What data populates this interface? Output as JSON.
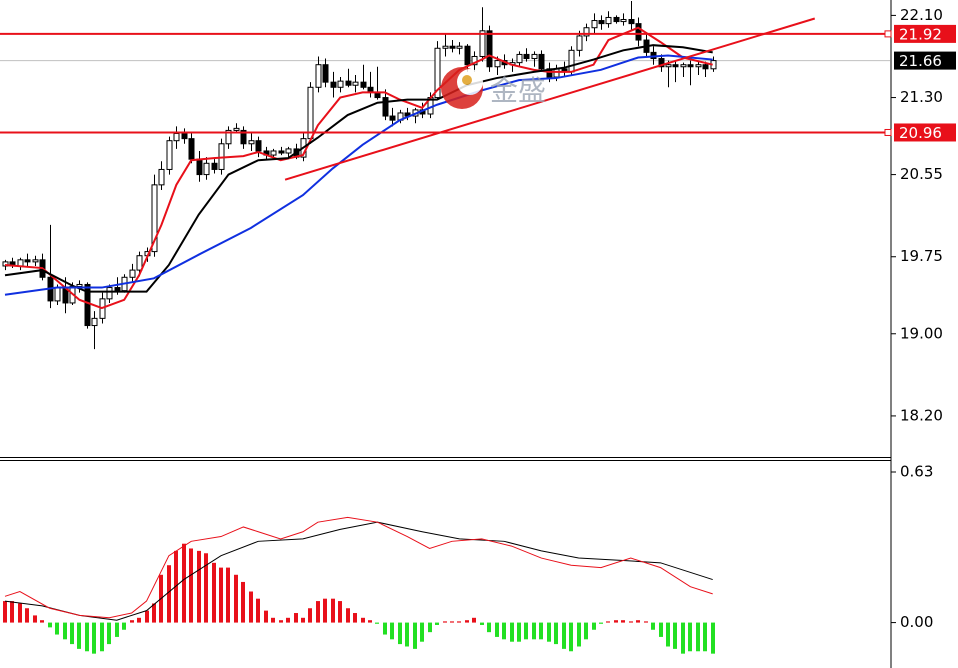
{
  "chart_data": [
    {
      "type": "candlestick",
      "watermark": "金盛",
      "xlim": [
        -0.67,
        118.8
      ],
      "ylim": [
        17.8,
        22.25
      ],
      "yticks": [
        {
          "value": 22.1,
          "label": "22.10"
        },
        {
          "value": 21.3,
          "label": "21.30"
        },
        20.55,
        19.75,
        {
          "value": 19.0,
          "label": "19.00"
        },
        {
          "value": 18.2,
          "label": "18.20"
        }
      ],
      "up_color": "#ffffff",
      "down_color": "#000000",
      "open": [
        19.66,
        19.7,
        19.66,
        19.72,
        19.7,
        19.72,
        19.55,
        19.32,
        19.45,
        19.3,
        19.46,
        19.48,
        19.08,
        19.15,
        19.34,
        19.45,
        19.42,
        19.55,
        19.62,
        19.76,
        19.8,
        20.45,
        20.6,
        20.88,
        20.95,
        20.9,
        20.7,
        20.55,
        20.66,
        20.6,
        20.85,
        20.98,
        20.98,
        20.85,
        20.88,
        20.78,
        20.74,
        20.78,
        20.76,
        20.8,
        20.72,
        20.9,
        21.4,
        21.62,
        21.45,
        21.4,
        21.46,
        21.42,
        21.45,
        21.4,
        21.35,
        21.3,
        21.12,
        21.08,
        21.15,
        21.12,
        21.18,
        21.14,
        21.3,
        21.78,
        21.8,
        21.78,
        21.8,
        21.62,
        21.7,
        21.95,
        21.6,
        21.66,
        21.62,
        21.64,
        21.72,
        21.68,
        21.72,
        21.58,
        21.5,
        21.58,
        21.55,
        21.76,
        21.9,
        21.98,
        22.05,
        22.02,
        22.08,
        22.04,
        22.06,
        22.02,
        21.86,
        21.74,
        21.68,
        21.6,
        21.62,
        21.6,
        21.62,
        21.6,
        21.62,
        21.58
      ],
      "high": [
        19.72,
        19.74,
        19.74,
        19.78,
        19.76,
        19.78,
        20.06,
        19.48,
        19.55,
        19.5,
        19.52,
        19.5,
        19.22,
        19.4,
        19.48,
        19.55,
        19.58,
        19.68,
        19.8,
        19.84,
        20.55,
        20.68,
        20.92,
        21.02,
        21.0,
        20.95,
        20.78,
        20.72,
        20.7,
        20.9,
        21.02,
        21.05,
        21.02,
        20.95,
        20.92,
        20.82,
        20.8,
        20.82,
        20.82,
        20.85,
        20.95,
        21.45,
        21.7,
        21.68,
        21.55,
        21.5,
        21.58,
        21.52,
        21.62,
        21.55,
        21.6,
        21.38,
        21.2,
        21.18,
        21.2,
        21.2,
        21.25,
        21.35,
        21.85,
        21.92,
        21.86,
        21.84,
        21.82,
        21.75,
        22.18,
        22.0,
        21.7,
        21.72,
        21.68,
        21.75,
        21.78,
        21.75,
        21.76,
        21.64,
        21.62,
        21.65,
        21.8,
        21.95,
        22.02,
        22.12,
        22.1,
        22.14,
        22.1,
        22.12,
        22.24,
        22.08,
        21.92,
        21.8,
        21.72,
        21.66,
        21.66,
        21.64,
        21.66,
        21.65,
        21.65,
        21.7
      ],
      "low": [
        19.62,
        19.64,
        19.62,
        19.66,
        19.66,
        19.52,
        19.25,
        19.28,
        19.2,
        19.28,
        19.4,
        19.05,
        18.85,
        19.1,
        19.3,
        19.38,
        19.4,
        19.5,
        19.56,
        19.7,
        19.75,
        20.4,
        20.55,
        20.8,
        20.85,
        20.66,
        20.48,
        20.5,
        20.56,
        20.55,
        20.8,
        20.95,
        20.8,
        20.78,
        20.72,
        20.7,
        20.72,
        20.74,
        20.7,
        20.7,
        20.68,
        20.85,
        21.35,
        21.4,
        21.3,
        21.35,
        21.4,
        21.35,
        21.38,
        21.3,
        21.28,
        21.08,
        21.02,
        21.05,
        21.08,
        21.05,
        21.1,
        21.1,
        21.28,
        21.7,
        21.74,
        21.72,
        21.55,
        21.55,
        21.65,
        21.55,
        21.52,
        21.58,
        21.55,
        21.6,
        21.65,
        21.6,
        21.55,
        21.45,
        21.46,
        21.5,
        21.52,
        21.7,
        21.85,
        21.92,
        21.96,
        21.98,
        22.02,
        22.0,
        21.95,
        21.8,
        21.7,
        21.62,
        21.55,
        21.4,
        21.45,
        21.5,
        21.42,
        21.52,
        21.5,
        21.55
      ],
      "close": [
        19.7,
        19.66,
        19.72,
        19.7,
        19.72,
        19.55,
        19.32,
        19.45,
        19.3,
        19.46,
        19.48,
        19.08,
        19.15,
        19.34,
        19.45,
        19.42,
        19.55,
        19.62,
        19.76,
        19.8,
        20.45,
        20.6,
        20.88,
        20.95,
        20.9,
        20.7,
        20.55,
        20.66,
        20.6,
        20.85,
        20.98,
        21.0,
        20.85,
        20.88,
        20.78,
        20.74,
        20.78,
        20.76,
        20.8,
        20.72,
        20.9,
        21.4,
        21.62,
        21.45,
        21.4,
        21.46,
        21.42,
        21.45,
        21.4,
        21.35,
        21.3,
        21.12,
        21.08,
        21.15,
        21.12,
        21.18,
        21.14,
        21.3,
        21.78,
        21.8,
        21.78,
        21.8,
        21.62,
        21.7,
        21.95,
        21.6,
        21.66,
        21.62,
        21.64,
        21.72,
        21.68,
        21.72,
        21.58,
        21.5,
        21.58,
        21.55,
        21.76,
        21.9,
        21.98,
        22.05,
        22.02,
        22.08,
        22.04,
        22.06,
        22.02,
        21.86,
        21.74,
        21.68,
        21.6,
        21.62,
        21.6,
        21.62,
        21.6,
        21.62,
        21.58,
        21.66
      ],
      "lines": [
        {
          "color": "#e8101a",
          "x": [
            0,
            5,
            10,
            13,
            16,
            18,
            21,
            23,
            25,
            28,
            32,
            34,
            37,
            40,
            42,
            45,
            48,
            51,
            53,
            56,
            58,
            61,
            64,
            65,
            68,
            71,
            73,
            76,
            79,
            81,
            85,
            88,
            91,
            95
          ],
          "values": [
            19.67,
            19.64,
            19.33,
            19.25,
            19.33,
            19.57,
            20.06,
            20.45,
            20.69,
            20.71,
            20.73,
            20.77,
            20.69,
            20.74,
            21.03,
            21.3,
            21.35,
            21.35,
            21.28,
            21.2,
            21.37,
            21.57,
            21.67,
            21.71,
            21.62,
            21.57,
            21.55,
            21.55,
            21.62,
            21.86,
            21.98,
            21.84,
            21.69,
            21.62
          ]
        },
        {
          "color": "#000000",
          "x": [
            0,
            5,
            9,
            11,
            19,
            22,
            26,
            30,
            34,
            38,
            42,
            46,
            50,
            54,
            58,
            62,
            66,
            71,
            75,
            79,
            83,
            87,
            91,
            95
          ],
          "values": [
            19.57,
            19.62,
            19.47,
            19.41,
            19.41,
            19.67,
            20.16,
            20.55,
            20.69,
            20.71,
            20.91,
            21.13,
            21.25,
            21.28,
            21.28,
            21.42,
            21.49,
            21.55,
            21.59,
            21.67,
            21.76,
            21.81,
            21.79,
            21.74
          ]
        },
        {
          "color": "#1030e0",
          "x": [
            0,
            7,
            13,
            20,
            26,
            33,
            40,
            44,
            48,
            53,
            58,
            64,
            69,
            74,
            80,
            85,
            89,
            95
          ],
          "values": [
            19.38,
            19.45,
            19.45,
            19.54,
            19.77,
            20.03,
            20.35,
            20.61,
            20.84,
            21.08,
            21.23,
            21.37,
            21.47,
            21.49,
            21.57,
            21.69,
            21.71,
            21.67
          ]
        }
      ],
      "trendline": {
        "color": "#e8101a",
        "x": [
          37.6,
          108.7
        ],
        "values": [
          20.5,
          22.07
        ]
      },
      "price_lines": [
        {
          "value": 21.92,
          "color": "#e8101a"
        },
        {
          "value": 20.96,
          "color": "#e8101a"
        }
      ],
      "last_price": {
        "value": 21.66,
        "color": "#000000"
      }
    },
    {
      "type": "macd",
      "xlim": [
        -0.67,
        118.8
      ],
      "ylim": [
        -0.19,
        0.676
      ],
      "yticks": [
        0.63,
        {
          "value": 0,
          "label": "0.00"
        }
      ],
      "up_color": "#e8101a",
      "down_color": "#22e022",
      "histogram": [
        0.09,
        0.09,
        0.08,
        0.06,
        0.03,
        0.01,
        -0.02,
        -0.05,
        -0.07,
        -0.09,
        -0.11,
        -0.12,
        -0.13,
        -0.12,
        -0.09,
        -0.06,
        -0.03,
        0.01,
        0.02,
        0.05,
        0.08,
        0.2,
        0.24,
        0.3,
        0.33,
        0.31,
        0.3,
        0.29,
        0.25,
        0.23,
        0.23,
        0.2,
        0.17,
        0.13,
        0.1,
        0.05,
        0.02,
        0.01,
        0.02,
        0.04,
        0.02,
        0.06,
        0.09,
        0.1,
        0.1,
        0.09,
        0.06,
        0.04,
        0.02,
        0.01,
        -0.005,
        -0.05,
        -0.07,
        -0.09,
        -0.1,
        -0.11,
        -0.08,
        -0.04,
        -0.01,
        0.005,
        0.005,
        0.005,
        0.01,
        0.02,
        -0.01,
        -0.04,
        -0.06,
        -0.07,
        -0.08,
        -0.08,
        -0.07,
        -0.07,
        -0.07,
        -0.08,
        -0.09,
        -0.11,
        -0.12,
        -0.1,
        -0.07,
        -0.03,
        -0.005,
        0.005,
        0.01,
        0.01,
        0.005,
        0.01,
        0.005,
        -0.03,
        -0.06,
        -0.1,
        -0.11,
        -0.13,
        -0.12,
        -0.12,
        -0.12,
        -0.13
      ],
      "lines": [
        {
          "color": "#000000",
          "x": [
            0,
            5,
            10,
            15,
            19,
            24,
            29,
            34,
            40,
            45,
            50,
            56,
            61,
            67,
            72,
            77,
            83,
            88,
            95
          ],
          "values": [
            0.09,
            0.07,
            0.03,
            0.01,
            0.05,
            0.18,
            0.28,
            0.34,
            0.35,
            0.39,
            0.42,
            0.38,
            0.35,
            0.34,
            0.3,
            0.27,
            0.26,
            0.25,
            0.18
          ]
        },
        {
          "color": "#e8101a",
          "x": [
            0,
            2,
            6,
            10,
            14,
            17,
            19,
            22,
            25,
            29,
            32,
            34,
            37,
            40,
            42,
            46,
            50,
            54,
            57,
            60,
            64,
            68,
            72,
            76,
            80,
            84,
            88,
            92,
            95
          ],
          "values": [
            0.11,
            0.13,
            0.06,
            0.03,
            0.02,
            0.04,
            0.09,
            0.28,
            0.34,
            0.36,
            0.4,
            0.38,
            0.35,
            0.38,
            0.42,
            0.44,
            0.42,
            0.36,
            0.31,
            0.34,
            0.35,
            0.32,
            0.27,
            0.24,
            0.23,
            0.27,
            0.23,
            0.15,
            0.12
          ]
        }
      ]
    }
  ]
}
